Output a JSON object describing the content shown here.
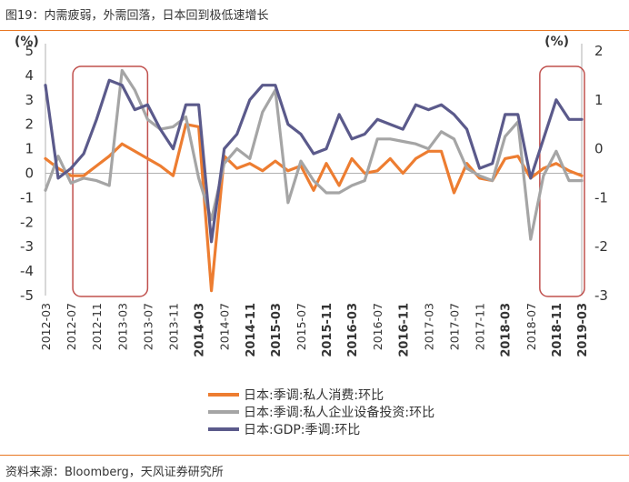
{
  "header": {
    "title": "图19：内需疲弱，外需回落，日本回到极低速增长"
  },
  "footer": {
    "source": "资料来源：Bloomberg，天风证券研究所"
  },
  "colors": {
    "accent": "#E87722",
    "consumption": "#ED7D31",
    "investment": "#A5A5A5",
    "gdp": "#5B5A8B",
    "box": "#C0504D",
    "text": "#333333"
  },
  "chart_data": {
    "type": "line",
    "title": "",
    "left_axis": {
      "unit_label": "(%)",
      "ylim": [
        -5,
        5
      ],
      "ticks": [
        5,
        4,
        3,
        2,
        1,
        0,
        -1,
        -2,
        -3,
        -4,
        -5
      ]
    },
    "right_axis": {
      "unit_label": "(%)",
      "ylim": [
        -3,
        2
      ],
      "ticks": [
        2,
        1,
        0,
        -1,
        -2,
        -3
      ]
    },
    "x": [
      "2012-03",
      "2012-05",
      "2012-07",
      "2012-09",
      "2012-11",
      "2013-01",
      "2013-03",
      "2013-05",
      "2013-07",
      "2013-09",
      "2013-11",
      "2014-01",
      "2014-03",
      "2014-05",
      "2014-07",
      "2014-09",
      "2014-11",
      "2015-01",
      "2015-03",
      "2015-05",
      "2015-07",
      "2015-09",
      "2015-11",
      "2016-01",
      "2016-03",
      "2016-05",
      "2016-07",
      "2016-09",
      "2016-11",
      "2017-01",
      "2017-03",
      "2017-05",
      "2017-07",
      "2017-09",
      "2017-11",
      "2018-01",
      "2018-03",
      "2018-05",
      "2018-07",
      "2018-09",
      "2018-11",
      "2019-01",
      "2019-03"
    ],
    "x_tick_labels": [
      {
        "label": "2012-03",
        "bold": false
      },
      {
        "label": "2012-07",
        "bold": false
      },
      {
        "label": "2012-11",
        "bold": false
      },
      {
        "label": "2013-03",
        "bold": false
      },
      {
        "label": "2013-07",
        "bold": false
      },
      {
        "label": "2013-11",
        "bold": false
      },
      {
        "label": "2014-03",
        "bold": true
      },
      {
        "label": "2014-07",
        "bold": false
      },
      {
        "label": "2014-11",
        "bold": true
      },
      {
        "label": "2015-03",
        "bold": true
      },
      {
        "label": "2015-07",
        "bold": false
      },
      {
        "label": "2015-11",
        "bold": true
      },
      {
        "label": "2016-03",
        "bold": true
      },
      {
        "label": "2016-07",
        "bold": false
      },
      {
        "label": "2016-11",
        "bold": true
      },
      {
        "label": "2017-03",
        "bold": false
      },
      {
        "label": "2017-07",
        "bold": false
      },
      {
        "label": "2017-11",
        "bold": false
      },
      {
        "label": "2018-03",
        "bold": true
      },
      {
        "label": "2018-07",
        "bold": false
      },
      {
        "label": "2018-11",
        "bold": true
      },
      {
        "label": "2019-03",
        "bold": true
      }
    ],
    "series": [
      {
        "name": "日本:季调:私人消费:环比",
        "axis": "left",
        "color": "#ED7D31",
        "values": [
          0.6,
          0.2,
          -0.1,
          -0.1,
          0.3,
          0.7,
          1.2,
          0.9,
          0.6,
          0.3,
          -0.1,
          2.0,
          1.9,
          -4.8,
          0.7,
          0.2,
          0.4,
          0.1,
          0.5,
          0.1,
          0.3,
          -0.7,
          0.4,
          -0.5,
          0.6,
          0.0,
          0.1,
          0.6,
          0.0,
          0.6,
          0.9,
          0.9,
          -0.8,
          0.4,
          -0.2,
          -0.3,
          0.6,
          0.7,
          -0.2,
          0.2,
          0.4,
          0.1,
          -0.1
        ]
      },
      {
        "name": "日本:季调:私人企业设备投资:环比",
        "axis": "left",
        "color": "#A5A5A5",
        "values": [
          -0.7,
          0.7,
          -0.4,
          -0.2,
          -0.3,
          -0.5,
          4.2,
          3.4,
          2.2,
          1.8,
          1.9,
          2.3,
          -0.2,
          -1.9,
          0.4,
          1.0,
          0.6,
          2.5,
          3.4,
          -1.2,
          0.5,
          -0.3,
          -0.8,
          -0.8,
          -0.5,
          -0.3,
          1.4,
          1.4,
          1.3,
          1.2,
          1.0,
          1.7,
          1.4,
          0.2,
          -0.1,
          -0.3,
          1.5,
          2.1,
          -2.7,
          -0.1,
          0.9,
          -0.3,
          -0.3
        ]
      },
      {
        "name": "日本:GDP:季调:环比",
        "axis": "right",
        "color": "#5B5A8B",
        "values": [
          1.3,
          -0.6,
          -0.4,
          -0.1,
          0.6,
          1.4,
          1.3,
          0.8,
          0.9,
          0.4,
          0.0,
          0.9,
          0.9,
          -1.9,
          0.0,
          0.3,
          1.0,
          1.3,
          1.3,
          0.5,
          0.3,
          -0.1,
          0.0,
          0.7,
          0.2,
          0.3,
          0.6,
          0.5,
          0.4,
          0.9,
          0.8,
          0.9,
          0.7,
          0.4,
          -0.4,
          -0.3,
          0.7,
          0.7,
          -0.6,
          0.2,
          1.0,
          0.6,
          0.6
        ]
      }
    ],
    "highlight_boxes": [
      {
        "from": "2012-07",
        "to": "2013-07"
      },
      {
        "from": "2018-09",
        "to": "2019-03"
      }
    ],
    "legend_position": "bottom-center"
  }
}
